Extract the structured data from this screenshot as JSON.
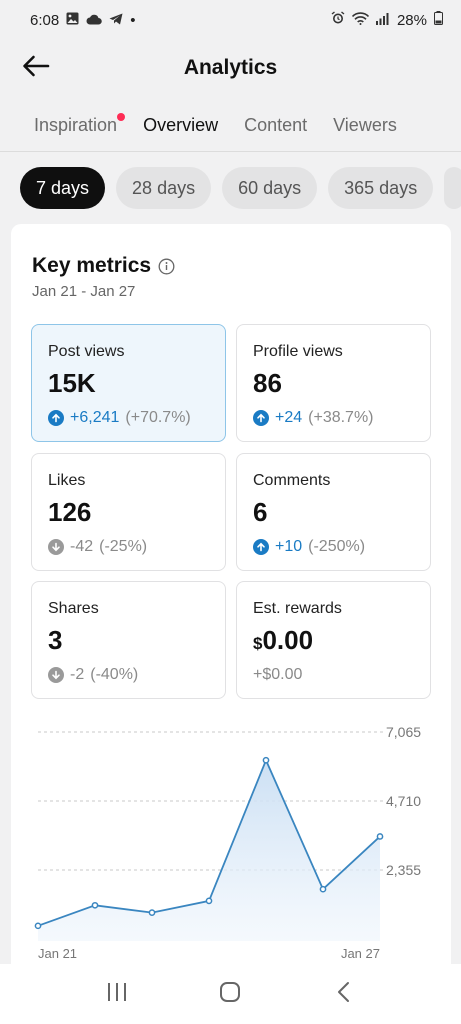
{
  "status_bar": {
    "time": "6:08",
    "battery": "28%",
    "dot": "•"
  },
  "header": {
    "title": "Analytics"
  },
  "tabs": [
    {
      "label": "Inspiration",
      "has_dot": true
    },
    {
      "label": "Overview",
      "active": true
    },
    {
      "label": "Content"
    },
    {
      "label": "Viewers"
    }
  ],
  "ranges": [
    {
      "label": "7 days",
      "active": true
    },
    {
      "label": "28 days"
    },
    {
      "label": "60 days"
    },
    {
      "label": "365 days"
    }
  ],
  "key_metrics": {
    "title": "Key metrics",
    "date_range": "Jan 21 - Jan 27",
    "metrics": [
      {
        "label": "Post views",
        "value": "15K",
        "change": "+6,241",
        "pct": "(+70.7%)",
        "trend": "up",
        "selected": true
      },
      {
        "label": "Profile views",
        "value": "86",
        "change": "+24",
        "pct": "(+38.7%)",
        "trend": "up"
      },
      {
        "label": "Likes",
        "value": "126",
        "change": "-42",
        "pct": "(-25%)",
        "trend": "down"
      },
      {
        "label": "Comments",
        "value": "6",
        "change": "+10",
        "pct": "(-250%)",
        "trend": "up"
      },
      {
        "label": "Shares",
        "value": "3",
        "change": "-2",
        "pct": "(-40%)",
        "trend": "down"
      },
      {
        "label": "Est. rewards",
        "currency": "$",
        "value": "0.00",
        "change": "+$0.00",
        "pct": "",
        "trend": "none"
      }
    ]
  },
  "chart_data": {
    "type": "area",
    "x": [
      "Jan 21",
      "Jan 22",
      "Jan 23",
      "Jan 24",
      "Jan 25",
      "Jan 26",
      "Jan 27"
    ],
    "xtick_labels": [
      "Jan 21",
      "Jan 27"
    ],
    "values": [
      450,
      1150,
      900,
      1300,
      6100,
      1700,
      3500
    ],
    "ytick_labels": [
      "7,065",
      "4,710",
      "2,355"
    ],
    "yticks": [
      7065,
      4710,
      2355
    ],
    "ylim": [
      0,
      7065
    ],
    "grid": true,
    "line_color": "#3a86c0",
    "fill_color": "#d6e8f8"
  },
  "colors": {
    "accent_red": "#fe2c55",
    "up_blue": "#1a7bc4",
    "selected_bg": "#eef6fc"
  }
}
